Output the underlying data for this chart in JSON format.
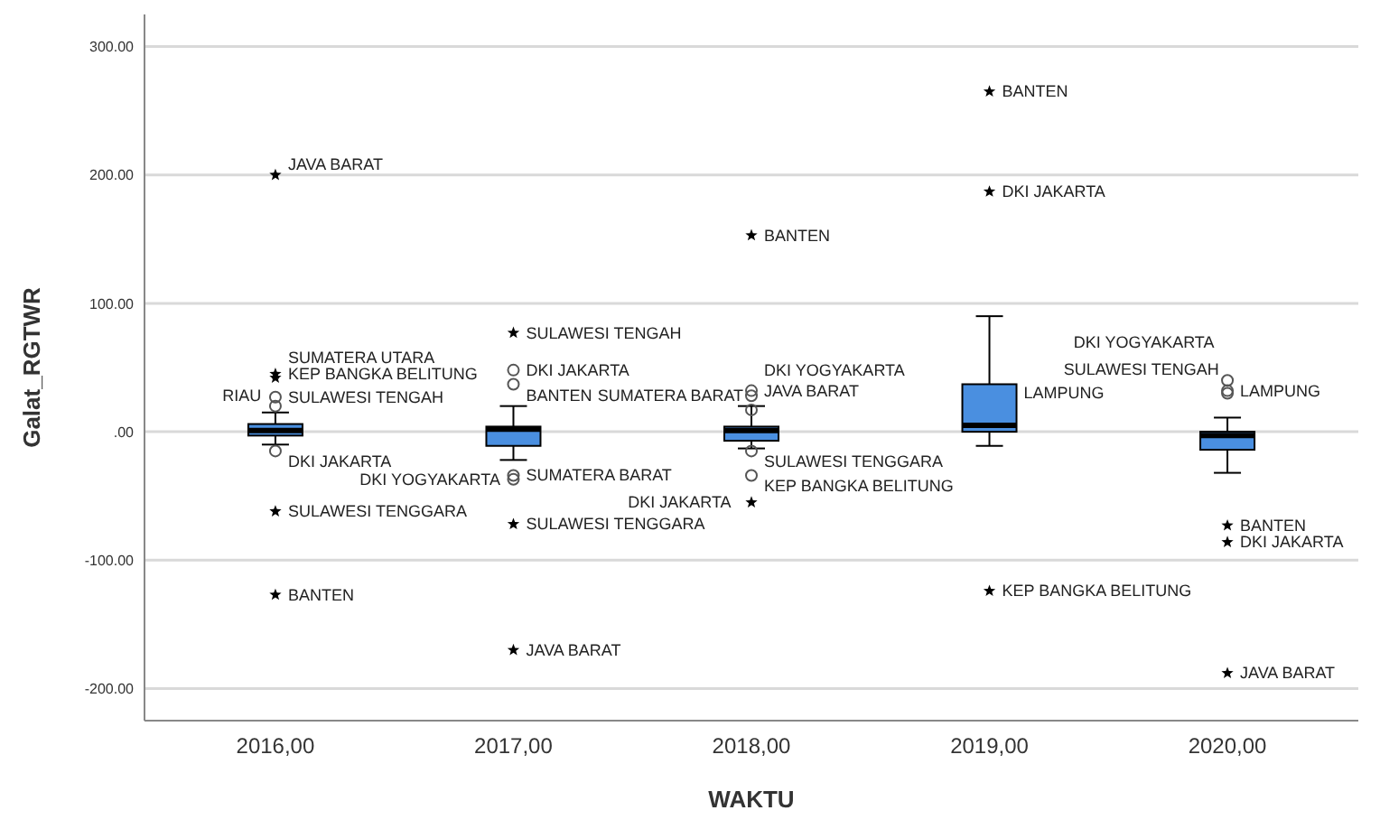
{
  "chart_data": {
    "type": "box",
    "xlabel": "WAKTU",
    "ylabel": "Galat_RGTWR",
    "categories": [
      "2016,00",
      "2017,00",
      "2018,00",
      "2019,00",
      "2020,00"
    ],
    "ylim": [
      -225,
      325
    ],
    "yticks": [
      {
        "value": -200,
        "label": "-200.00"
      },
      {
        "value": -100,
        "label": "-100.00"
      },
      {
        "value": 0,
        "label": ".00"
      },
      {
        "value": 100,
        "label": "100.00"
      },
      {
        "value": 200,
        "label": "200.00"
      },
      {
        "value": 300,
        "label": "300.00"
      }
    ],
    "grid": "y",
    "series": [
      {
        "color": "#4a8fe0",
        "boxes": [
          {
            "low": -10,
            "q1": -3,
            "median": 1,
            "q3": 6,
            "high": 15
          },
          {
            "low": -22,
            "q1": -11,
            "median": 2,
            "q3": 4,
            "high": 20
          },
          {
            "low": -13,
            "q1": -7,
            "median": 1,
            "q3": 4,
            "high": 20
          },
          {
            "low": -11,
            "q1": 0,
            "median": 5,
            "q3": 37,
            "high": 90
          },
          {
            "low": -32,
            "q1": -14,
            "median": -3,
            "q3": 0,
            "high": 11
          }
        ]
      },
      {
        "type": "scatter",
        "marker": "circle",
        "color": "#555555",
        "x": [
          "2016,00",
          "2016,00",
          "2016,00",
          "2017,00",
          "2017,00",
          "2017,00",
          "2017,00",
          "2018,00",
          "2018,00",
          "2018,00",
          "2018,00",
          "2018,00",
          "2020,00",
          "2020,00",
          "2020,00"
        ],
        "values": [
          27,
          20,
          -15,
          48,
          37,
          -34,
          -37,
          32,
          28,
          17,
          -15,
          -34,
          40,
          32,
          30
        ]
      },
      {
        "type": "scatter",
        "marker": "star",
        "color": "#000000",
        "x": [
          "2016,00",
          "2016,00",
          "2016,00",
          "2016,00",
          "2016,00",
          "2017,00",
          "2017,00",
          "2017,00",
          "2018,00",
          "2018,00",
          "2019,00",
          "2019,00",
          "2019,00",
          "2020,00",
          "2020,00",
          "2020,00"
        ],
        "values": [
          200,
          45,
          42,
          -62,
          -127,
          77,
          -72,
          -170,
          153,
          -55,
          265,
          187,
          -124,
          -73,
          -86,
          -188
        ]
      }
    ],
    "annotations": [
      {
        "text": "JAVA BARAT",
        "x": "2016,00",
        "y": 200
      },
      {
        "text": "KEP BANGKA BELITUNG",
        "x": "2016,00",
        "y": 45
      },
      {
        "text": "SULAWESI TENGAH",
        "x": "2016,00",
        "y": 42
      },
      {
        "text": "SUMATERA UTARA",
        "x": "2016,00",
        "y": 27
      },
      {
        "text": "RIAU",
        "x": "2016,00",
        "y": 20
      },
      {
        "text": "DKI JAKARTA",
        "x": "2016,00",
        "y": -15
      },
      {
        "text": "SULAWESI TENGGARA",
        "x": "2016,00",
        "y": -62
      },
      {
        "text": "BANTEN",
        "x": "2016,00",
        "y": -127
      },
      {
        "text": "SULAWESI TENGAH",
        "x": "2017,00",
        "y": 77
      },
      {
        "text": "DKI JAKARTA",
        "x": "2017,00",
        "y": 48
      },
      {
        "text": "BANTEN",
        "x": "2017,00",
        "y": 20
      },
      {
        "text": "SUMATERA BARAT",
        "x": "2017,00",
        "y": -34
      },
      {
        "text": "DKI YOGYAKARTA",
        "x": "2017,00",
        "y": -37
      },
      {
        "text": "SULAWESI TENGGARA",
        "x": "2017,00",
        "y": -72
      },
      {
        "text": "JAVA BARAT",
        "x": "2017,00",
        "y": -170
      },
      {
        "text": "BANTEN",
        "x": "2018,00",
        "y": 153
      },
      {
        "text": "JAVA BARAT",
        "x": "2018,00",
        "y": 32
      },
      {
        "text": "SUMATERA BARAT",
        "x": "2018,00",
        "y": 28
      },
      {
        "text": "DKI YOGYAKARTA",
        "x": "2018,00",
        "y": 17
      },
      {
        "text": "SULAWESI TENGGARA",
        "x": "2018,00",
        "y": -15
      },
      {
        "text": "KEP BANGKA BELITUNG",
        "x": "2018,00",
        "y": -34
      },
      {
        "text": "DKI JAKARTA",
        "x": "2018,00",
        "y": -55
      },
      {
        "text": "LAMPUNG",
        "x": "2019,00",
        "y": 30
      },
      {
        "text": "BANTEN",
        "x": "2019,00",
        "y": 265
      },
      {
        "text": "DKI JAKARTA",
        "x": "2019,00",
        "y": 187
      },
      {
        "text": "KEP BANGKA BELITUNG",
        "x": "2019,00",
        "y": -124
      },
      {
        "text": "SULAWESI TENGAH",
        "x": "2020,00",
        "y": 40
      },
      {
        "text": "LAMPUNG",
        "x": "2020,00",
        "y": 32
      },
      {
        "text": "DKI YOGYAKARTA",
        "x": "2020,00",
        "y": 30
      },
      {
        "text": "BANTEN",
        "x": "2020,00",
        "y": -73
      },
      {
        "text": "DKI JAKARTA",
        "x": "2020,00",
        "y": -86
      },
      {
        "text": "JAVA BARAT",
        "x": "2020,00",
        "y": -188
      }
    ]
  }
}
